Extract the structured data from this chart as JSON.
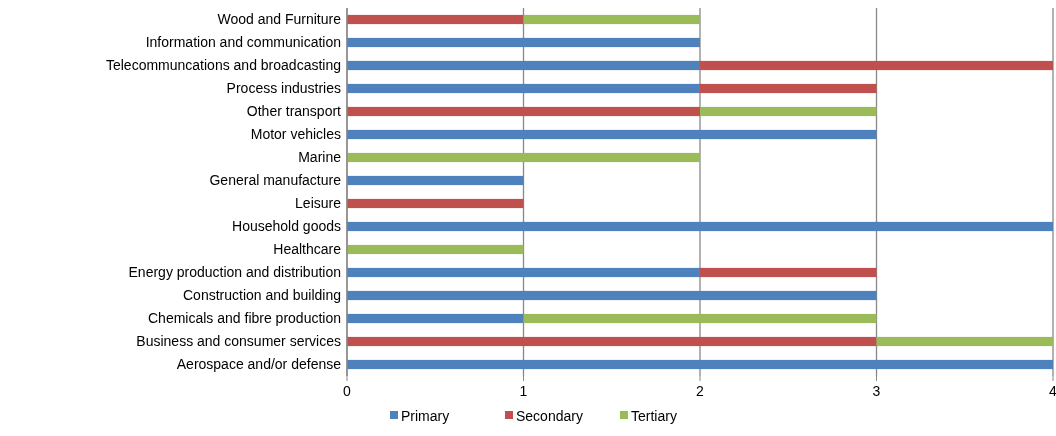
{
  "chart_data": {
    "type": "bar",
    "orientation": "horizontal",
    "stacked": true,
    "categories": [
      "Wood and Furniture",
      "Information and communication",
      "Telecommuncations and broadcasting",
      "Process industries",
      "Other transport",
      "Motor vehicles",
      "Marine",
      "General manufacture",
      "Leisure",
      "Household goods",
      "Healthcare",
      "Energy production and distribution",
      "Construction and building",
      "Chemicals and fibre production",
      "Business and consumer services",
      "Aerospace and/or defense"
    ],
    "series": [
      {
        "name": "Primary",
        "color": "#4f81bd",
        "values": [
          null,
          2,
          2,
          2,
          null,
          3,
          null,
          1,
          null,
          4,
          null,
          2,
          3,
          1,
          null,
          4
        ]
      },
      {
        "name": "Secondary",
        "color": "#c0504d",
        "values": [
          1,
          null,
          2,
          1,
          2,
          null,
          null,
          null,
          1,
          null,
          null,
          1,
          null,
          null,
          3,
          null
        ]
      },
      {
        "name": "Tertiary",
        "color": "#9bbb59",
        "values": [
          1,
          null,
          null,
          null,
          1,
          null,
          2,
          null,
          null,
          null,
          1,
          null,
          null,
          2,
          1,
          null
        ]
      }
    ],
    "xlim": [
      0,
      4
    ],
    "xticks": [
      0,
      1,
      2,
      3,
      4
    ],
    "grid": "x",
    "legend": "bottom"
  }
}
